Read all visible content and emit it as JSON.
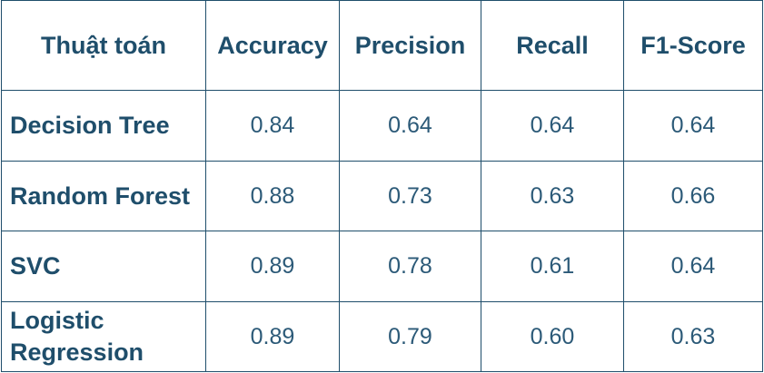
{
  "table": {
    "headers": [
      "Thuật toán",
      "Accuracy",
      "Precision",
      "Recall",
      "F1-Score"
    ],
    "rows": [
      {
        "label": "Decision Tree",
        "values": [
          "0.84",
          "0.64",
          "0.64",
          "0.64"
        ]
      },
      {
        "label": "Random Forest",
        "values": [
          "0.88",
          "0.73",
          "0.63",
          "0.66"
        ]
      },
      {
        "label": "SVC",
        "values": [
          "0.89",
          "0.78",
          "0.61",
          "0.64"
        ]
      },
      {
        "label_line1": "Logistic",
        "label_line2": "Regression",
        "values": [
          "0.89",
          "0.79",
          "0.60",
          "0.63"
        ]
      }
    ]
  },
  "colors": {
    "border": "#1f4e6b",
    "header_text": "#1f4e6b",
    "value_text": "#2c5a78",
    "background": "#ffffff"
  }
}
